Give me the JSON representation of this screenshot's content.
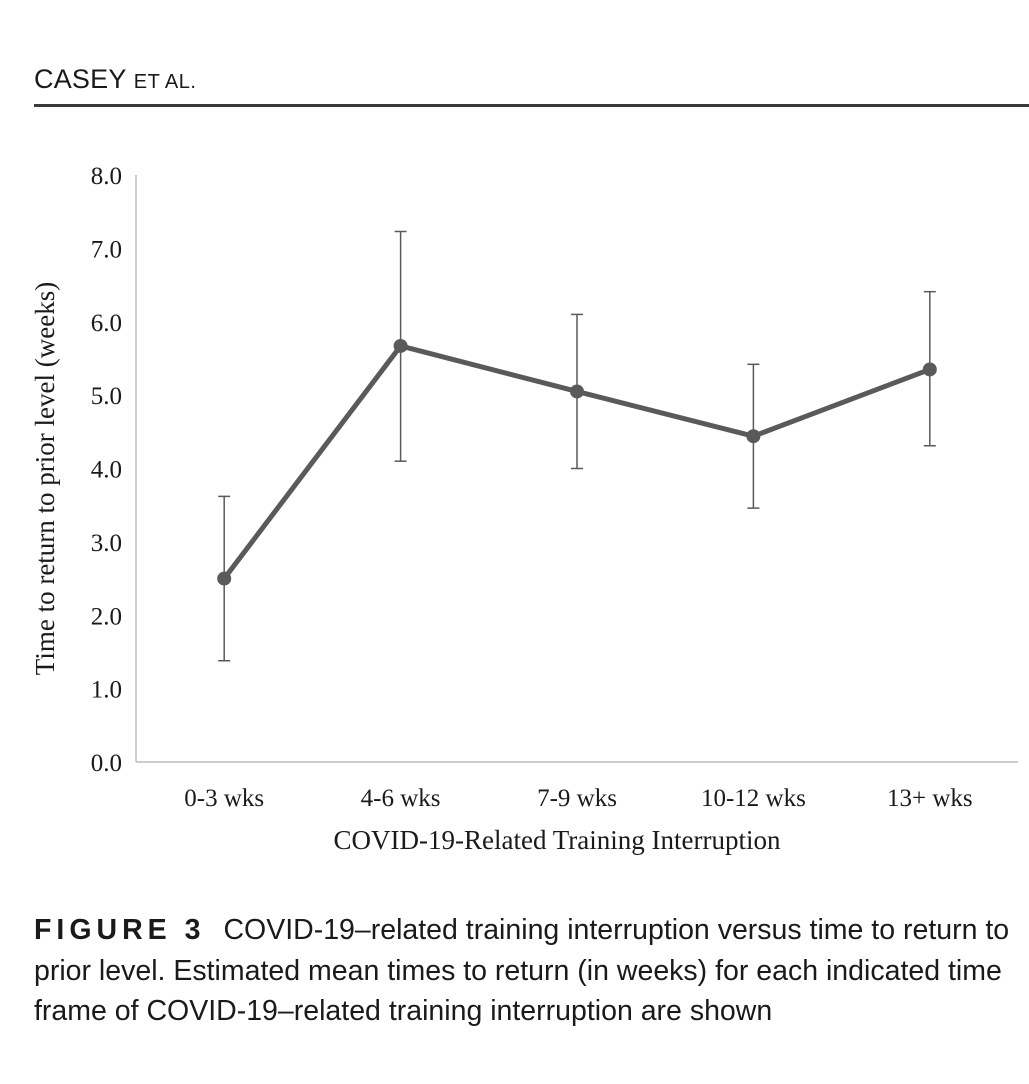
{
  "running_head": {
    "author": "CASEY",
    "suffix": "ET AL."
  },
  "caption": {
    "label": "FIGURE 3",
    "text": "COVID-19–related training interruption versus time to return to prior level. Estimated mean times to return (in weeks) for each indicated time frame of COVID-19–related training interruption are shown"
  },
  "chart_data": {
    "type": "line",
    "categories": [
      "0-3 wks",
      "4-6 wks",
      "7-9 wks",
      "10-12 wks",
      "13+ wks"
    ],
    "series": [
      {
        "values": [
          2.5,
          5.67,
          5.05,
          4.44,
          5.35
        ],
        "error_lower": [
          1.38,
          4.1,
          4.0,
          3.46,
          4.31
        ],
        "error_upper": [
          3.62,
          7.23,
          6.1,
          5.42,
          6.41
        ],
        "color": "#5a5a5a"
      }
    ],
    "title": "",
    "xlabel": "COVID-19-Related Training Interruption",
    "ylabel": "Time to return to prior level (weeks)",
    "ylim": [
      0,
      8
    ],
    "yticks": [
      "0.0",
      "1.0",
      "2.0",
      "3.0",
      "4.0",
      "5.0",
      "6.0",
      "7.0",
      "8.0"
    ],
    "grid": false,
    "legend": "none"
  }
}
